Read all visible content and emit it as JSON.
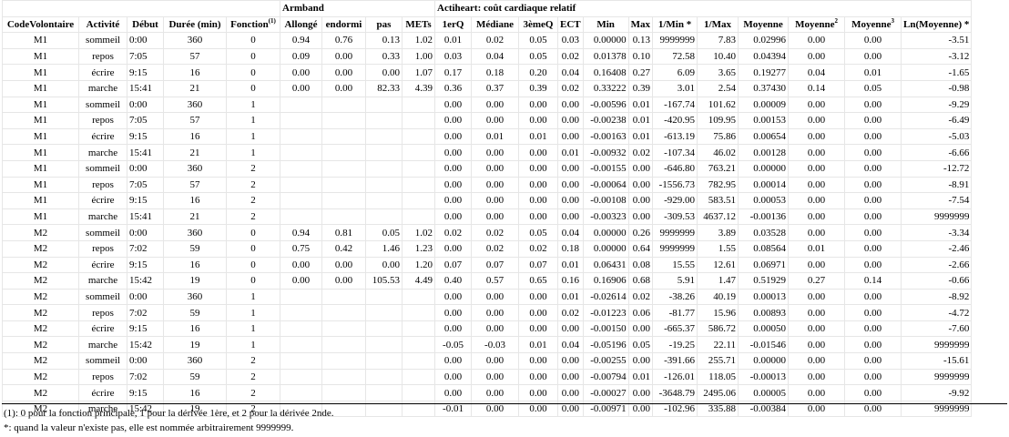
{
  "groups": {
    "armband": "Armband",
    "actiheart": "Actiheart: coût cardiaque relatif"
  },
  "headers": [
    "CodeVolontaire",
    "Activité",
    "Début",
    "Durée (min)",
    "Fonction",
    "Allongé",
    "endormi",
    "pas",
    "METs",
    "1erQ",
    "Médiane",
    "3èmeQ",
    "ECT",
    "Min",
    "Max",
    "1/Min *",
    "1/Max",
    "Moyenne",
    "Moyenne",
    "Moyenne",
    "Ln(Moyenne) *"
  ],
  "header_sup": {
    "fonction": "(1)",
    "moyenne2": "2",
    "moyenne3": "3"
  },
  "rows": [
    [
      "M1",
      "sommeil",
      "0:00",
      "360",
      "0",
      "0.94",
      "0.76",
      "0.13",
      "1.02",
      "0.01",
      "0.02",
      "0.05",
      "0.03",
      "0.00000",
      "0.13",
      "9999999",
      "7.83",
      "0.02996",
      "0.00",
      "0.00",
      "-3.51"
    ],
    [
      "M1",
      "repos",
      "7:05",
      "57",
      "0",
      "0.09",
      "0.00",
      "0.33",
      "1.00",
      "0.03",
      "0.04",
      "0.05",
      "0.02",
      "0.01378",
      "0.10",
      "72.58",
      "10.40",
      "0.04394",
      "0.00",
      "0.00",
      "-3.12"
    ],
    [
      "M1",
      "écrire",
      "9:15",
      "16",
      "0",
      "0.00",
      "0.00",
      "0.00",
      "1.07",
      "0.17",
      "0.18",
      "0.20",
      "0.04",
      "0.16408",
      "0.27",
      "6.09",
      "3.65",
      "0.19277",
      "0.04",
      "0.01",
      "-1.65"
    ],
    [
      "M1",
      "marche",
      "15:41",
      "21",
      "0",
      "0.00",
      "0.00",
      "82.33",
      "4.39",
      "0.36",
      "0.37",
      "0.39",
      "0.02",
      "0.33222",
      "0.39",
      "3.01",
      "2.54",
      "0.37430",
      "0.14",
      "0.05",
      "-0.98"
    ],
    [
      "M1",
      "sommeil",
      "0:00",
      "360",
      "1",
      "",
      "",
      "",
      "",
      "0.00",
      "0.00",
      "0.00",
      "0.00",
      "-0.00596",
      "0.01",
      "-167.74",
      "101.62",
      "0.00009",
      "0.00",
      "0.00",
      "-9.29"
    ],
    [
      "M1",
      "repos",
      "7:05",
      "57",
      "1",
      "",
      "",
      "",
      "",
      "0.00",
      "0.00",
      "0.00",
      "0.00",
      "-0.00238",
      "0.01",
      "-420.95",
      "109.95",
      "0.00153",
      "0.00",
      "0.00",
      "-6.49"
    ],
    [
      "M1",
      "écrire",
      "9:15",
      "16",
      "1",
      "",
      "",
      "",
      "",
      "0.00",
      "0.01",
      "0.01",
      "0.00",
      "-0.00163",
      "0.01",
      "-613.19",
      "75.86",
      "0.00654",
      "0.00",
      "0.00",
      "-5.03"
    ],
    [
      "M1",
      "marche",
      "15:41",
      "21",
      "1",
      "",
      "",
      "",
      "",
      "0.00",
      "0.00",
      "0.00",
      "0.01",
      "-0.00932",
      "0.02",
      "-107.34",
      "46.02",
      "0.00128",
      "0.00",
      "0.00",
      "-6.66"
    ],
    [
      "M1",
      "sommeil",
      "0:00",
      "360",
      "2",
      "",
      "",
      "",
      "",
      "0.00",
      "0.00",
      "0.00",
      "0.00",
      "-0.00155",
      "0.00",
      "-646.80",
      "763.21",
      "0.00000",
      "0.00",
      "0.00",
      "-12.72"
    ],
    [
      "M1",
      "repos",
      "7:05",
      "57",
      "2",
      "",
      "",
      "",
      "",
      "0.00",
      "0.00",
      "0.00",
      "0.00",
      "-0.00064",
      "0.00",
      "-1556.73",
      "782.95",
      "0.00014",
      "0.00",
      "0.00",
      "-8.91"
    ],
    [
      "M1",
      "écrire",
      "9:15",
      "16",
      "2",
      "",
      "",
      "",
      "",
      "0.00",
      "0.00",
      "0.00",
      "0.00",
      "-0.00108",
      "0.00",
      "-929.00",
      "583.51",
      "0.00053",
      "0.00",
      "0.00",
      "-7.54"
    ],
    [
      "M1",
      "marche",
      "15:41",
      "21",
      "2",
      "",
      "",
      "",
      "",
      "0.00",
      "0.00",
      "0.00",
      "0.00",
      "-0.00323",
      "0.00",
      "-309.53",
      "4637.12",
      "-0.00136",
      "0.00",
      "0.00",
      "9999999"
    ],
    [
      "M2",
      "sommeil",
      "0:00",
      "360",
      "0",
      "0.94",
      "0.81",
      "0.05",
      "1.02",
      "0.02",
      "0.02",
      "0.05",
      "0.04",
      "0.00000",
      "0.26",
      "9999999",
      "3.89",
      "0.03528",
      "0.00",
      "0.00",
      "-3.34"
    ],
    [
      "M2",
      "repos",
      "7:02",
      "59",
      "0",
      "0.75",
      "0.42",
      "1.46",
      "1.23",
      "0.00",
      "0.02",
      "0.02",
      "0.18",
      "0.00000",
      "0.64",
      "9999999",
      "1.55",
      "0.08564",
      "0.01",
      "0.00",
      "-2.46"
    ],
    [
      "M2",
      "écrire",
      "9:15",
      "16",
      "0",
      "0.00",
      "0.00",
      "0.00",
      "1.20",
      "0.07",
      "0.07",
      "0.07",
      "0.01",
      "0.06431",
      "0.08",
      "15.55",
      "12.61",
      "0.06971",
      "0.00",
      "0.00",
      "-2.66"
    ],
    [
      "M2",
      "marche",
      "15:42",
      "19",
      "0",
      "0.00",
      "0.00",
      "105.53",
      "4.49",
      "0.40",
      "0.57",
      "0.65",
      "0.16",
      "0.16906",
      "0.68",
      "5.91",
      "1.47",
      "0.51929",
      "0.27",
      "0.14",
      "-0.66"
    ],
    [
      "M2",
      "sommeil",
      "0:00",
      "360",
      "1",
      "",
      "",
      "",
      "",
      "0.00",
      "0.00",
      "0.00",
      "0.01",
      "-0.02614",
      "0.02",
      "-38.26",
      "40.19",
      "0.00013",
      "0.00",
      "0.00",
      "-8.92"
    ],
    [
      "M2",
      "repos",
      "7:02",
      "59",
      "1",
      "",
      "",
      "",
      "",
      "0.00",
      "0.00",
      "0.00",
      "0.02",
      "-0.01223",
      "0.06",
      "-81.77",
      "15.96",
      "0.00893",
      "0.00",
      "0.00",
      "-4.72"
    ],
    [
      "M2",
      "écrire",
      "9:15",
      "16",
      "1",
      "",
      "",
      "",
      "",
      "0.00",
      "0.00",
      "0.00",
      "0.00",
      "-0.00150",
      "0.00",
      "-665.37",
      "586.72",
      "0.00050",
      "0.00",
      "0.00",
      "-7.60"
    ],
    [
      "M2",
      "marche",
      "15:42",
      "19",
      "1",
      "",
      "",
      "",
      "",
      "-0.05",
      "-0.03",
      "0.01",
      "0.04",
      "-0.05196",
      "0.05",
      "-19.25",
      "22.11",
      "-0.01546",
      "0.00",
      "0.00",
      "9999999"
    ],
    [
      "M2",
      "sommeil",
      "0:00",
      "360",
      "2",
      "",
      "",
      "",
      "",
      "0.00",
      "0.00",
      "0.00",
      "0.00",
      "-0.00255",
      "0.00",
      "-391.66",
      "255.71",
      "0.00000",
      "0.00",
      "0.00",
      "-15.61"
    ],
    [
      "M2",
      "repos",
      "7:02",
      "59",
      "2",
      "",
      "",
      "",
      "",
      "0.00",
      "0.00",
      "0.00",
      "0.00",
      "-0.00794",
      "0.01",
      "-126.01",
      "118.05",
      "-0.00013",
      "0.00",
      "0.00",
      "9999999"
    ],
    [
      "M2",
      "écrire",
      "9:15",
      "16",
      "2",
      "",
      "",
      "",
      "",
      "0.00",
      "0.00",
      "0.00",
      "0.00",
      "-0.00027",
      "0.00",
      "-3648.79",
      "2495.06",
      "0.00005",
      "0.00",
      "0.00",
      "-9.92"
    ],
    [
      "M2",
      "marche",
      "15:42",
      "19",
      "2",
      "",
      "",
      "",
      "",
      "-0.01",
      "0.00",
      "0.00",
      "0.00",
      "-0.00971",
      "0.00",
      "-102.96",
      "335.88",
      "-0.00384",
      "0.00",
      "0.00",
      "9999999"
    ]
  ],
  "footnotes": [
    "(1):  0 pour la fonction principale, 1 pour la dérivée 1ère, et 2 pour la dérivée 2nde.",
    "*: quand la valeur n'existe pas, elle est nommée arbitrairement 9999999."
  ]
}
